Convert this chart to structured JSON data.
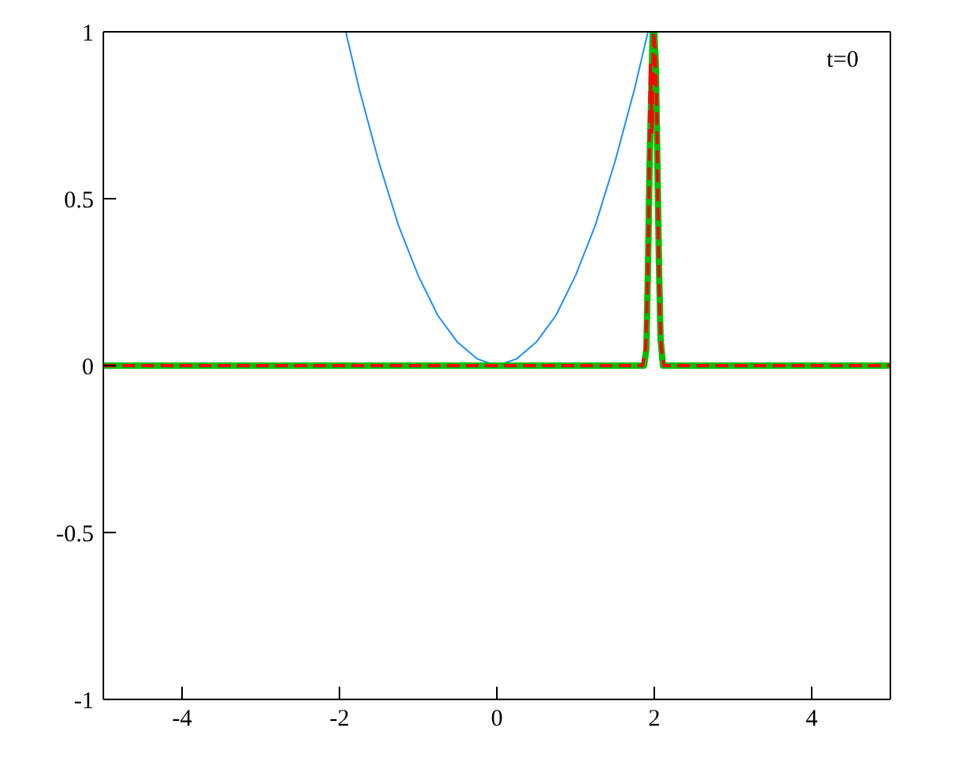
{
  "chart_data": {
    "type": "line",
    "xlim": [
      -5,
      5
    ],
    "ylim": [
      -1,
      1
    ],
    "xticks": [
      -4,
      -2,
      0,
      2,
      4
    ],
    "yticks": [
      -1,
      -0.5,
      0,
      0.5,
      1
    ],
    "marker": "none",
    "annotations": [
      "t=0"
    ],
    "series": [
      {
        "color": "#1e90ff",
        "line_style": "solid",
        "x": [
          -1.92,
          -1.75,
          -1.5,
          -1.25,
          -1,
          -0.75,
          -0.5,
          -0.25,
          0,
          0.25,
          0.5,
          0.75,
          1,
          1.25,
          1.5,
          1.75,
          1.92
        ],
        "values": [
          1,
          0.83,
          0.61,
          0.42,
          0.27,
          0.15,
          0.07,
          0.02,
          0,
          0.02,
          0.07,
          0.15,
          0.27,
          0.42,
          0.61,
          0.83,
          1
        ]
      },
      {
        "color": "#ff0000",
        "line_style": "dashed",
        "x": [
          -5,
          1.85,
          1.89,
          1.91,
          1.93,
          1.95,
          1.97,
          1.99,
          2.01,
          2.03,
          2.05,
          2.07,
          2.09,
          2.12,
          5
        ],
        "values": [
          0,
          0,
          0.05,
          0.2,
          0.44,
          0.9,
          0.7,
          1,
          0.95,
          0.8,
          0.4,
          0.15,
          0.05,
          0,
          0
        ]
      },
      {
        "color": "#00c000",
        "line_style": "solid",
        "x": [
          -5,
          1.87,
          1.9,
          1.92,
          1.94,
          1.96,
          1.98,
          2,
          2.02,
          2.04,
          2.06,
          2.08,
          2.11,
          5
        ],
        "values": [
          0,
          0,
          0.05,
          0.3,
          0.6,
          0.8,
          1,
          1,
          0.9,
          0.6,
          0.3,
          0.08,
          0,
          0
        ]
      }
    ]
  }
}
